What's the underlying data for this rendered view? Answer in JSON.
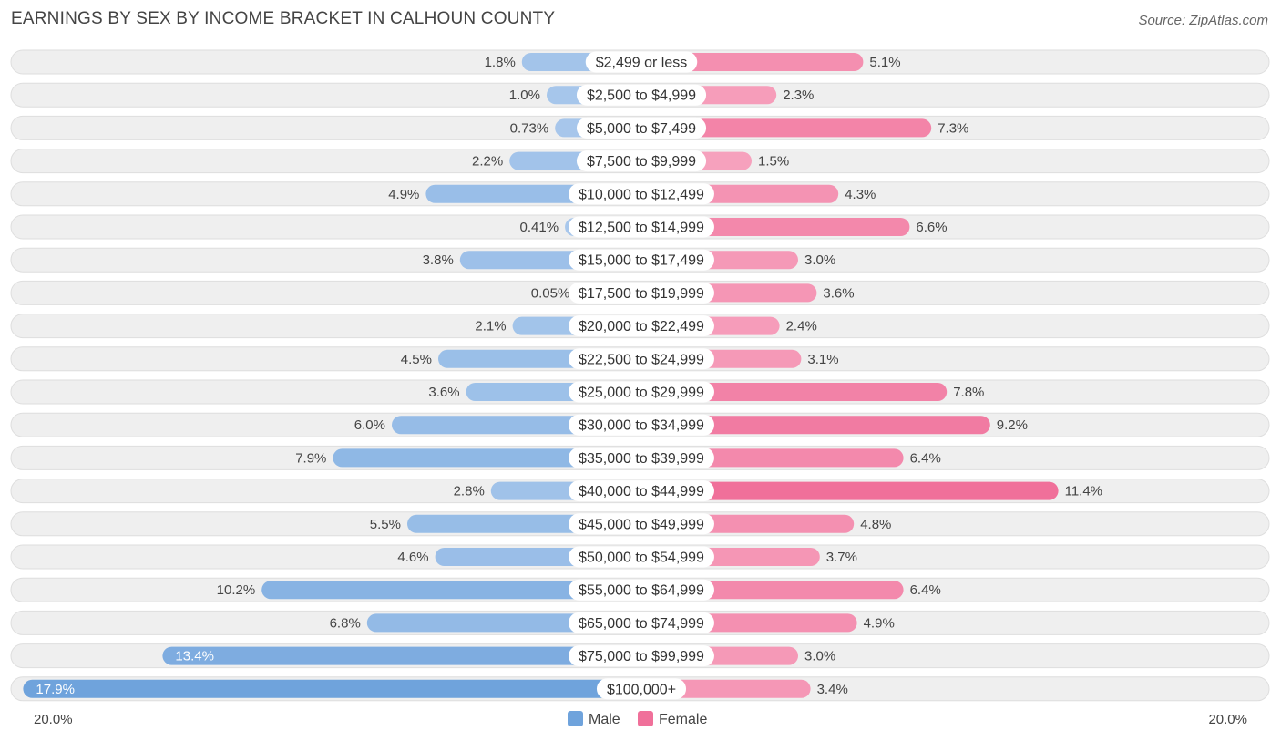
{
  "chart_data": {
    "type": "bar",
    "orientation": "horizontal-diverging",
    "title": "EARNINGS BY SEX BY INCOME BRACKET IN CALHOUN COUNTY",
    "source": "Source: ZipAtlas.com",
    "categories": [
      "$2,499 or less",
      "$2,500 to $4,999",
      "$5,000 to $7,499",
      "$7,500 to $9,999",
      "$10,000 to $12,499",
      "$12,500 to $14,999",
      "$15,000 to $17,499",
      "$17,500 to $19,999",
      "$20,000 to $22,499",
      "$22,500 to $24,999",
      "$25,000 to $29,999",
      "$30,000 to $34,999",
      "$35,000 to $39,999",
      "$40,000 to $44,999",
      "$45,000 to $49,999",
      "$50,000 to $54,999",
      "$55,000 to $64,999",
      "$65,000 to $74,999",
      "$75,000 to $99,999",
      "$100,000+"
    ],
    "series": [
      {
        "name": "Male",
        "values": [
          1.8,
          1.0,
          0.73,
          2.2,
          4.9,
          0.41,
          3.8,
          0.05,
          2.1,
          4.5,
          3.6,
          6.0,
          7.9,
          2.8,
          5.5,
          4.6,
          10.2,
          6.8,
          13.4,
          17.9
        ],
        "labels": [
          "1.8%",
          "1.0%",
          "0.73%",
          "2.2%",
          "4.9%",
          "0.41%",
          "3.8%",
          "0.05%",
          "2.1%",
          "4.5%",
          "3.6%",
          "6.0%",
          "7.9%",
          "2.8%",
          "5.5%",
          "4.6%",
          "10.2%",
          "6.8%",
          "13.4%",
          "17.9%"
        ]
      },
      {
        "name": "Female",
        "values": [
          5.1,
          2.3,
          7.3,
          1.5,
          4.3,
          6.6,
          3.0,
          3.6,
          2.4,
          3.1,
          7.8,
          9.2,
          6.4,
          11.4,
          4.8,
          3.7,
          6.4,
          4.9,
          3.0,
          3.4
        ],
        "labels": [
          "5.1%",
          "2.3%",
          "7.3%",
          "1.5%",
          "4.3%",
          "6.6%",
          "3.0%",
          "3.6%",
          "2.4%",
          "3.1%",
          "7.8%",
          "9.2%",
          "6.4%",
          "11.4%",
          "4.8%",
          "3.7%",
          "6.4%",
          "4.9%",
          "3.0%",
          "3.4%"
        ]
      }
    ],
    "xlim": [
      -20,
      20
    ],
    "axis_left_label": "20.0%",
    "axis_right_label": "20.0%",
    "legend": [
      {
        "name": "Male",
        "color": "#6fa3dc"
      },
      {
        "name": "Female",
        "color": "#f0709a"
      }
    ],
    "legend_position": "bottom-center"
  },
  "colors": {
    "male_light": "#a9c8ec",
    "male_dark": "#6fa3dc",
    "female_light": "#f7a8c2",
    "female_dark": "#f0709a"
  }
}
